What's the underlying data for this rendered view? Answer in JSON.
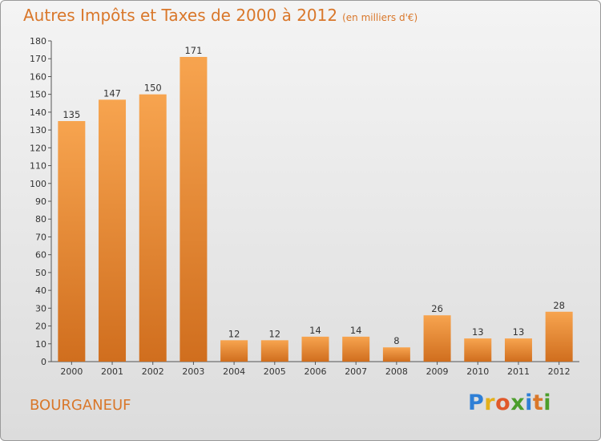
{
  "header": {
    "title": "Autres Impôts et Taxes de 2000 à 2012",
    "unit": "(en milliers d'€)"
  },
  "commune": "BOURGANEUF",
  "logo": {
    "letters": [
      "P",
      "r",
      "o",
      "x",
      "i",
      "t",
      "i"
    ],
    "colors": [
      "#2e7fd6",
      "#e4b01a",
      "#e0582a",
      "#4c9e2c",
      "#2e7fd6",
      "#d9772a",
      "#4c9e2c"
    ]
  },
  "colors": {
    "bar_light": "#f7a44f",
    "bar_dark": "#d06e1e",
    "accent": "#d9772a"
  },
  "chart_data": {
    "type": "bar",
    "title": "Autres Impôts et Taxes de 2000 à 2012",
    "subtitle": "(en milliers d'€)",
    "categories": [
      "2000",
      "2001",
      "2002",
      "2003",
      "2004",
      "2005",
      "2006",
      "2007",
      "2008",
      "2009",
      "2010",
      "2011",
      "2012"
    ],
    "values": [
      135,
      147,
      150,
      171,
      12,
      12,
      14,
      14,
      8,
      26,
      13,
      13,
      28
    ],
    "ylim": [
      0,
      180
    ],
    "yticks": [
      0,
      10,
      20,
      30,
      40,
      50,
      60,
      70,
      80,
      90,
      100,
      110,
      120,
      130,
      140,
      150,
      160,
      170,
      180
    ],
    "grid": false,
    "legend": "none"
  }
}
